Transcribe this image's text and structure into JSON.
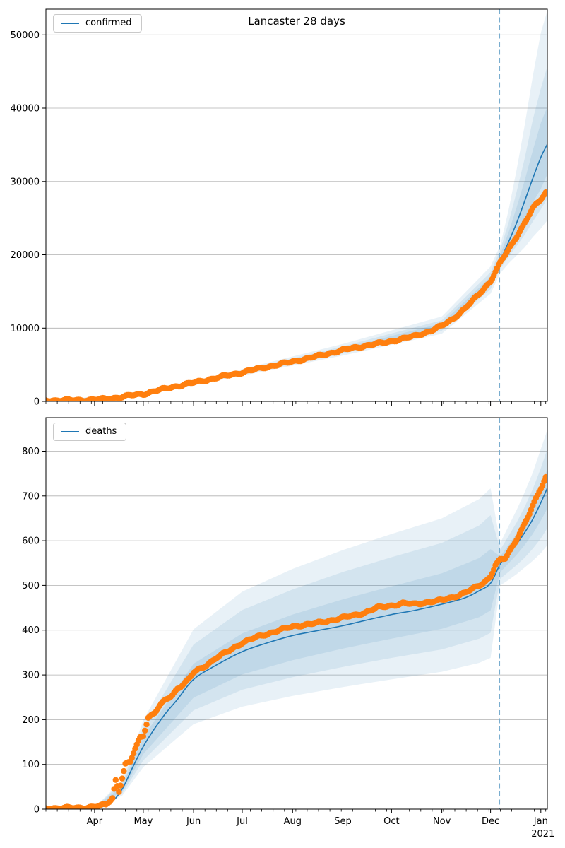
{
  "figure": {
    "title": "Lancaster 28 days",
    "background": "#ffffff"
  },
  "colors": {
    "median_line": "#1f77b4",
    "observed_points": "#ff7f0e",
    "forecast_vline": "#79adcf",
    "band_base": "#1f77b4",
    "band_alpha": 0.1,
    "grid": "#b0b0b0",
    "spine": "#000000",
    "text": "#000000"
  },
  "chart_data": [
    {
      "type": "line",
      "name": "confirmed",
      "title": "Lancaster 28 days",
      "legend": [
        "confirmed"
      ],
      "legend_position": "upper left",
      "xlabel": "",
      "ylabel": "",
      "grid": true,
      "ylim": [
        0,
        53500
      ],
      "yticks": [
        0,
        10000,
        20000,
        30000,
        40000,
        50000
      ],
      "x_total_days": 309,
      "x_month_ticks": {
        "labels": [
          "Apr",
          "May",
          "Jun",
          "Jul",
          "Aug",
          "Sep",
          "Oct",
          "Nov",
          "Dec",
          "Jan"
        ],
        "days": [
          30,
          60,
          91,
          121,
          152,
          183,
          213,
          244,
          274,
          305
        ]
      },
      "x_minor_tick_step_days": 7,
      "forecast_vline_day": 279.5,
      "observed_points": {
        "x_days": [
          0,
          14,
          28,
          38,
          45,
          52,
          60,
          67,
          74,
          81,
          91,
          105,
          121,
          135,
          152,
          166,
          183,
          197,
          213,
          227,
          237,
          244,
          251,
          258,
          265,
          274,
          280,
          285,
          290,
          295,
          300,
          305,
          308
        ],
        "values": [
          140,
          160,
          210,
          350,
          550,
          800,
          1000,
          1400,
          1750,
          2100,
          2550,
          3200,
          3960,
          4650,
          5420,
          6100,
          7000,
          7600,
          8200,
          8900,
          9600,
          10300,
          11300,
          12600,
          14200,
          16400,
          18900,
          20700,
          22500,
          24300,
          26300,
          27600,
          28500
        ]
      },
      "median_line": {
        "x_days": [
          0,
          30,
          60,
          91,
          121,
          152,
          183,
          213,
          244,
          258,
          274,
          280,
          285,
          290,
          295,
          300,
          305,
          309
        ],
        "values": [
          130,
          240,
          950,
          2500,
          3900,
          5350,
          6950,
          8150,
          10250,
          12500,
          16300,
          19200,
          21700,
          24300,
          27300,
          30400,
          33300,
          35100
        ]
      },
      "bands": [
        {
          "level": "outer",
          "x_days": [
            0,
            60,
            121,
            183,
            244,
            274,
            280,
            285,
            290,
            295,
            300,
            305,
            309
          ],
          "lo": [
            117,
            860,
            3510,
            6260,
            9230,
            14700,
            17500,
            18800,
            19900,
            21000,
            22400,
            23600,
            24700
          ],
          "hi": [
            147,
            1070,
            4410,
            7850,
            11580,
            18400,
            21300,
            26000,
            31500,
            37600,
            44300,
            50300,
            53300
          ]
        },
        {
          "level": "middle",
          "x_days": [
            0,
            60,
            121,
            183,
            244,
            274,
            280,
            285,
            290,
            295,
            300,
            305,
            309
          ],
          "lo": [
            122,
            890,
            3670,
            6530,
            9640,
            15300,
            18100,
            19700,
            21200,
            22700,
            24500,
            26200,
            27700
          ],
          "hi": [
            140,
            1030,
            4210,
            7510,
            11070,
            17600,
            20700,
            24300,
            28500,
            33100,
            38400,
            42700,
            45700
          ]
        },
        {
          "level": "inner",
          "x_days": [
            0,
            60,
            121,
            183,
            244,
            274,
            280,
            285,
            290,
            295,
            300,
            305,
            309
          ],
          "lo": [
            126,
            920,
            3780,
            6740,
            9940,
            15800,
            18600,
            20600,
            22600,
            24800,
            27100,
            29000,
            31000
          ],
          "hi": [
            135,
            990,
            4060,
            7230,
            10660,
            17000,
            20000,
            23000,
            26400,
            30100,
            34200,
            38000,
            40200
          ]
        }
      ]
    },
    {
      "type": "line",
      "name": "deaths",
      "title": "",
      "legend": [
        "deaths"
      ],
      "legend_position": "upper left",
      "xlabel": "",
      "ylabel": "",
      "grid": true,
      "ylim": [
        0,
        875
      ],
      "yticks": [
        0,
        100,
        200,
        300,
        400,
        500,
        600,
        700,
        800
      ],
      "x_total_days": 309,
      "x_month_ticks": {
        "labels": [
          "Apr",
          "May",
          "Jun",
          "Jul",
          "Aug",
          "Sep",
          "Oct",
          "Nov",
          "Dec",
          "Jan"
        ],
        "days": [
          30,
          60,
          91,
          121,
          152,
          183,
          213,
          244,
          274,
          305
        ]
      },
      "x_year_label": "2021",
      "x_minor_tick_step_days": 7,
      "forecast_vline_day": 279.5,
      "observed_points": {
        "x_days": [
          0,
          21,
          30,
          37,
          41,
          43,
          45,
          47,
          49,
          52,
          55,
          58,
          60,
          63,
          67,
          70,
          74,
          78,
          81,
          85,
          88,
          91,
          98,
          105,
          112,
          121,
          128,
          135,
          142,
          152,
          159,
          166,
          173,
          183,
          190,
          197,
          204,
          213,
          220,
          227,
          234,
          241,
          244,
          251,
          258,
          263,
          267,
          271,
          274,
          277,
          280,
          283,
          286,
          289,
          292,
          295,
          298,
          301,
          304,
          306,
          308
        ],
        "values": [
          2,
          3,
          5,
          10,
          25,
          65,
          40,
          70,
          100,
          105,
          135,
          160,
          165,
          205,
          215,
          230,
          245,
          255,
          270,
          280,
          290,
          305,
          320,
          338,
          352,
          372,
          382,
          390,
          398,
          408,
          412,
          415,
          420,
          428,
          433,
          440,
          450,
          455,
          460,
          458,
          462,
          465,
          467,
          474,
          483,
          492,
          500,
          510,
          520,
          545,
          557,
          560,
          578,
          597,
          617,
          638,
          660,
          685,
          710,
          725,
          742
        ]
      },
      "median_line": {
        "x_days": [
          0,
          30,
          40,
          47,
          53,
          60,
          67,
          74,
          81,
          91,
          105,
          121,
          135,
          152,
          166,
          183,
          197,
          213,
          227,
          244,
          258,
          267,
          274,
          280,
          285,
          290,
          295,
          300,
          305,
          309
        ],
        "values": [
          1,
          3,
          15,
          45,
          90,
          140,
          180,
          215,
          245,
          290,
          322,
          352,
          370,
          388,
          398,
          410,
          422,
          435,
          444,
          458,
          472,
          488,
          505,
          548,
          570,
          592,
          618,
          648,
          685,
          718
        ]
      },
      "bands": [
        {
          "level": "outer",
          "x_days": [
            0,
            30,
            47,
            60,
            91,
            121,
            152,
            183,
            213,
            244,
            267,
            274,
            280,
            285,
            290,
            295,
            300,
            305,
            309
          ],
          "lo": [
            1,
            2,
            30,
            94,
            190,
            229,
            253,
            273,
            290,
            307,
            327,
            338,
            500,
            512,
            525,
            540,
            555,
            572,
            590
          ],
          "hi": [
            1,
            4,
            64,
            199,
            402,
            486,
            537,
            579,
            615,
            650,
            693,
            717,
            595,
            632,
            668,
            708,
            752,
            805,
            848
          ]
        },
        {
          "level": "middle",
          "x_days": [
            0,
            30,
            47,
            60,
            91,
            121,
            152,
            183,
            213,
            244,
            267,
            274,
            280,
            285,
            290,
            295,
            300,
            305,
            309
          ],
          "lo": [
            1,
            2,
            35,
            109,
            221,
            267,
            295,
            318,
            338,
            357,
            381,
            394,
            515,
            530,
            545,
            562,
            582,
            605,
            628
          ],
          "hi": [
            1,
            4,
            59,
            182,
            368,
            445,
            491,
            530,
            563,
            595,
            634,
            657,
            580,
            610,
            640,
            675,
            715,
            762,
            805
          ]
        },
        {
          "level": "inner",
          "x_days": [
            0,
            30,
            47,
            60,
            91,
            121,
            152,
            183,
            213,
            244,
            267,
            274,
            280,
            285,
            290,
            295,
            300,
            305,
            309
          ],
          "lo": [
            1,
            3,
            40,
            123,
            249,
            301,
            333,
            359,
            381,
            403,
            429,
            444,
            530,
            549,
            568,
            590,
            615,
            645,
            672
          ],
          "hi": [
            1,
            3,
            52,
            161,
            325,
            393,
            435,
            469,
            498,
            527,
            561,
            581,
            565,
            590,
            615,
            645,
            680,
            722,
            760
          ]
        }
      ]
    }
  ]
}
